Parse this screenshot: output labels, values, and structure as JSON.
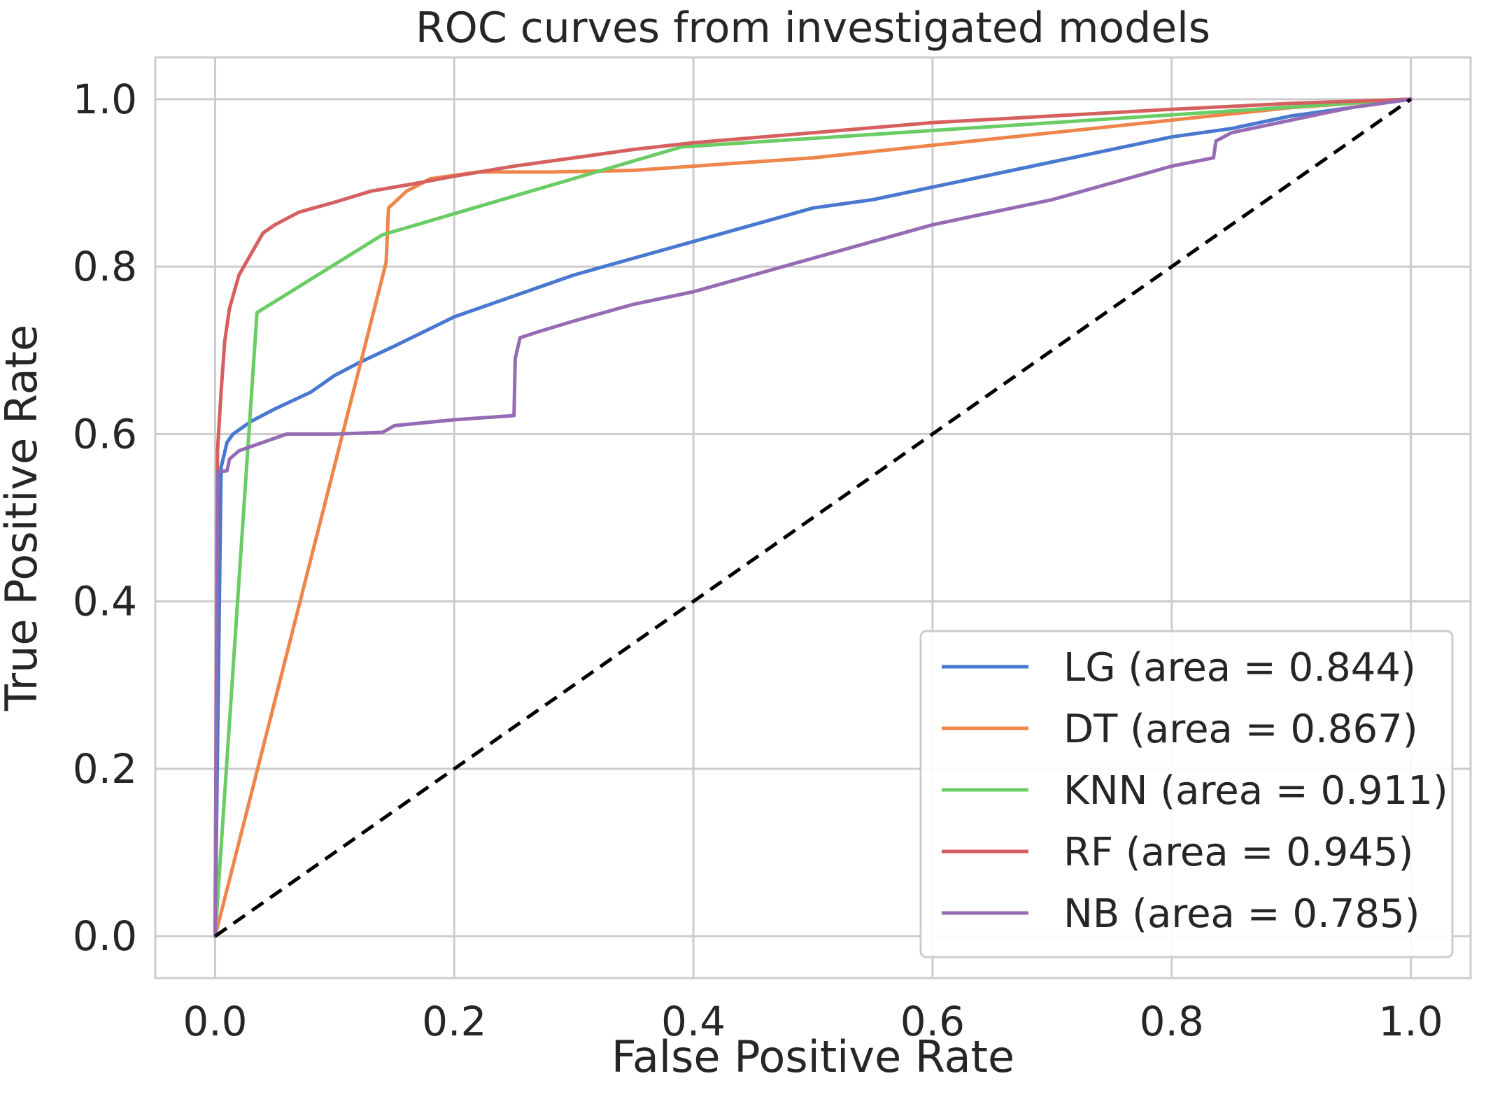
{
  "chart_data": {
    "type": "line",
    "title": "ROC curves from investigated models",
    "xlabel": "False Positive Rate",
    "ylabel": "True Positive Rate",
    "xlim": [
      -0.05,
      1.05
    ],
    "ylim": [
      -0.05,
      1.05
    ],
    "xticks": [
      0.0,
      0.2,
      0.4,
      0.6,
      0.8,
      1.0
    ],
    "yticks": [
      0.0,
      0.2,
      0.4,
      0.6,
      0.8,
      1.0
    ],
    "xtick_labels": [
      "0.0",
      "0.2",
      "0.4",
      "0.6",
      "0.8",
      "1.0"
    ],
    "ytick_labels": [
      "0.0",
      "0.2",
      "0.4",
      "0.6",
      "0.8",
      "1.0"
    ],
    "grid": true,
    "legend_position": "bottom-right",
    "series": [
      {
        "name": "LG (area = 0.844)",
        "color": "#4878d0",
        "x": [
          0,
          0.005,
          0.01,
          0.015,
          0.02,
          0.03,
          0.05,
          0.08,
          0.1,
          0.12,
          0.15,
          0.2,
          0.25,
          0.3,
          0.35,
          0.4,
          0.45,
          0.5,
          0.55,
          0.6,
          0.65,
          0.7,
          0.75,
          0.8,
          0.85,
          0.9,
          0.95,
          1.0
        ],
        "y": [
          0,
          0.56,
          0.59,
          0.6,
          0.605,
          0.615,
          0.63,
          0.65,
          0.67,
          0.685,
          0.705,
          0.74,
          0.765,
          0.79,
          0.81,
          0.83,
          0.85,
          0.87,
          0.88,
          0.895,
          0.91,
          0.925,
          0.94,
          0.955,
          0.965,
          0.98,
          0.99,
          1.0
        ]
      },
      {
        "name": "DT (area = 0.867)",
        "color": "#ee854a",
        "x": [
          0,
          0.143,
          0.145,
          0.16,
          0.18,
          0.22,
          0.28,
          0.35,
          0.5,
          0.7,
          0.9,
          1.0
        ],
        "y": [
          0,
          0.805,
          0.87,
          0.89,
          0.905,
          0.913,
          0.913,
          0.915,
          0.93,
          0.96,
          0.99,
          1.0
        ]
      },
      {
        "name": "KNN (area = 0.911)",
        "color": "#6acc64",
        "x": [
          0,
          0.035,
          0.14,
          0.39,
          1.0
        ],
        "y": [
          0,
          0.745,
          0.838,
          0.943,
          1.0
        ]
      },
      {
        "name": "RF (area = 0.945)",
        "color": "#d65f5f",
        "x": [
          0,
          0.002,
          0.005,
          0.008,
          0.012,
          0.02,
          0.03,
          0.04,
          0.05,
          0.07,
          0.1,
          0.13,
          0.17,
          0.2,
          0.25,
          0.3,
          0.35,
          0.4,
          0.5,
          0.6,
          0.7,
          0.8,
          0.9,
          1.0
        ],
        "y": [
          0,
          0.58,
          0.65,
          0.71,
          0.75,
          0.79,
          0.815,
          0.84,
          0.85,
          0.865,
          0.877,
          0.89,
          0.9,
          0.908,
          0.92,
          0.93,
          0.94,
          0.948,
          0.96,
          0.972,
          0.98,
          0.988,
          0.995,
          1.0
        ]
      },
      {
        "name": "NB (area = 0.785)",
        "color": "#956cb4",
        "x": [
          0,
          0.002,
          0.01,
          0.012,
          0.02,
          0.04,
          0.06,
          0.1,
          0.14,
          0.15,
          0.2,
          0.25,
          0.251,
          0.255,
          0.27,
          0.3,
          0.35,
          0.4,
          0.45,
          0.5,
          0.55,
          0.6,
          0.65,
          0.7,
          0.75,
          0.8,
          0.835,
          0.837,
          0.85,
          0.9,
          0.95,
          1.0
        ],
        "y": [
          0,
          0.555,
          0.556,
          0.57,
          0.58,
          0.59,
          0.6,
          0.6,
          0.602,
          0.61,
          0.617,
          0.622,
          0.69,
          0.715,
          0.722,
          0.735,
          0.755,
          0.77,
          0.79,
          0.81,
          0.83,
          0.85,
          0.865,
          0.88,
          0.9,
          0.92,
          0.93,
          0.95,
          0.96,
          0.975,
          0.99,
          1.0
        ]
      }
    ],
    "reference_line": {
      "x": [
        0,
        1
      ],
      "y": [
        0,
        1
      ],
      "color": "#000000",
      "style": "dashed"
    }
  }
}
